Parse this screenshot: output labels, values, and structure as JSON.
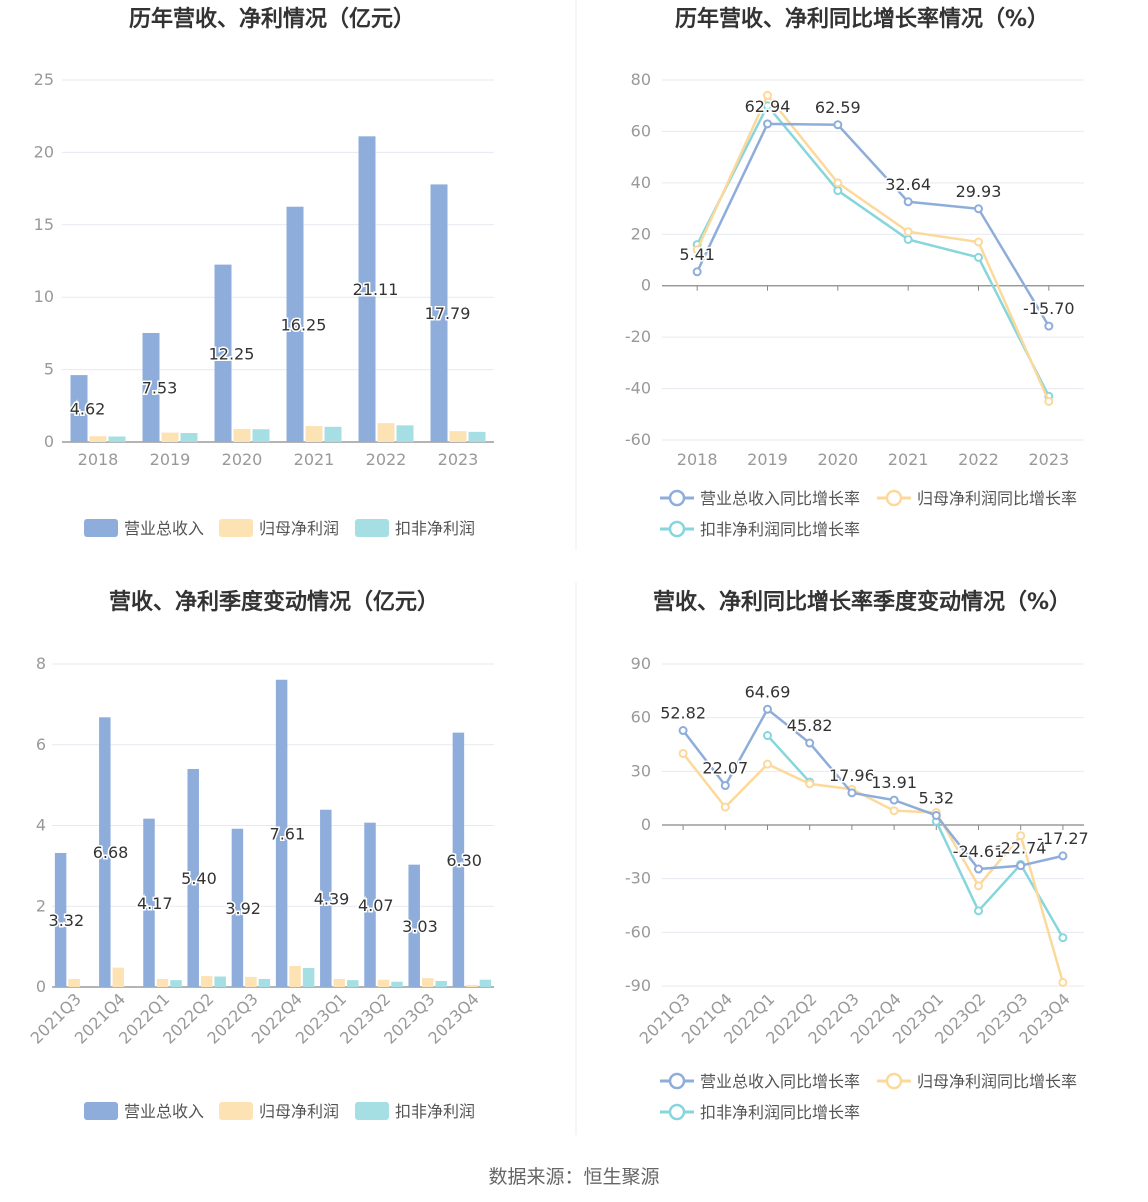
{
  "colors": {
    "revenue": "#8eaddb",
    "parent_profit": "#fde2b3",
    "deducted_profit": "#a5dfe3",
    "revenue_line": "#8eaddb",
    "parent_line": "#fcd99b",
    "deducted_line": "#86d6dc",
    "axis_text": "#999999",
    "title": "#333333",
    "grid": "#e6e9f0",
    "divider": "#eeeeee"
  },
  "source": "数据来源：恒生聚源",
  "chart_data": [
    {
      "id": "annual-amount",
      "type": "bar",
      "title": "历年营收、净利情况（亿元）",
      "categories": [
        "2018",
        "2019",
        "2020",
        "2021",
        "2022",
        "2023"
      ],
      "ylim": [
        0,
        25
      ],
      "yticks": [
        "0",
        "5",
        "10",
        "15",
        "20",
        "25"
      ],
      "grid": true,
      "legend_position": "bottom",
      "series": [
        {
          "name": "营业总收入",
          "values": [
            4.62,
            7.53,
            12.25,
            16.25,
            21.11,
            17.79
          ],
          "labels": [
            "4.62",
            "7.53",
            "12.25",
            "16.25",
            "21.11",
            "17.79"
          ]
        },
        {
          "name": "归母净利润",
          "values": [
            0.4,
            0.65,
            0.9,
            1.1,
            1.3,
            0.75
          ]
        },
        {
          "name": "扣非净利润",
          "values": [
            0.38,
            0.62,
            0.88,
            1.05,
            1.15,
            0.7
          ]
        }
      ]
    },
    {
      "id": "annual-growth",
      "type": "line",
      "title": "历年营收、净利同比增长率情况（%）",
      "categories": [
        "2018",
        "2019",
        "2020",
        "2021",
        "2022",
        "2023"
      ],
      "ylim": [
        -60,
        80
      ],
      "yticks": [
        "-60",
        "-40",
        "-20",
        "0",
        "20",
        "40",
        "60",
        "80"
      ],
      "grid": true,
      "legend_position": "bottom",
      "series": [
        {
          "name": "营业总收入同比增长率",
          "values": [
            5.41,
            62.94,
            62.59,
            32.64,
            29.93,
            -15.7
          ],
          "labels": [
            "5.41",
            "62.94",
            "62.59",
            "32.64",
            "29.93",
            "-15.70"
          ]
        },
        {
          "name": "归母净利润同比增长率",
          "values": [
            14,
            74,
            40,
            21,
            17,
            -45
          ]
        },
        {
          "name": "扣非净利润同比增长率",
          "values": [
            16,
            70,
            37,
            18,
            11,
            -43
          ]
        }
      ]
    },
    {
      "id": "quarterly-amount",
      "type": "bar",
      "title": "营收、净利季度变动情况（亿元）",
      "categories": [
        "2021Q3",
        "2021Q4",
        "2022Q1",
        "2022Q2",
        "2022Q3",
        "2022Q4",
        "2023Q1",
        "2023Q2",
        "2023Q3",
        "2023Q4"
      ],
      "ylim": [
        0,
        8
      ],
      "yticks": [
        "0",
        "2",
        "4",
        "6",
        "8"
      ],
      "grid": true,
      "legend_position": "bottom",
      "series": [
        {
          "name": "营业总收入",
          "values": [
            3.32,
            6.68,
            4.17,
            5.4,
            3.92,
            7.61,
            4.39,
            4.07,
            3.03,
            6.3
          ],
          "labels": [
            "3.32",
            "6.68",
            "4.17",
            "5.40",
            "3.92",
            "7.61",
            "4.39",
            "4.07",
            "3.03",
            "6.30"
          ]
        },
        {
          "name": "归母净利润",
          "values": [
            0.2,
            0.48,
            0.2,
            0.27,
            0.25,
            0.52,
            0.2,
            0.18,
            0.22,
            0.05
          ]
        },
        {
          "name": "扣非净利润",
          "values": [
            0.0,
            0.0,
            0.17,
            0.26,
            0.2,
            0.47,
            0.17,
            0.13,
            0.15,
            0.18
          ]
        }
      ]
    },
    {
      "id": "quarterly-growth",
      "type": "line",
      "title": "营收、净利同比增长率季度变动情况（%）",
      "categories": [
        "2021Q3",
        "2021Q4",
        "2022Q1",
        "2022Q2",
        "2022Q3",
        "2022Q4",
        "2023Q1",
        "2023Q2",
        "2023Q3",
        "2023Q4"
      ],
      "ylim": [
        -90,
        90
      ],
      "yticks": [
        "-90",
        "-60",
        "-30",
        "0",
        "30",
        "60",
        "90"
      ],
      "grid": true,
      "legend_position": "bottom",
      "series": [
        {
          "name": "营业总收入同比增长率",
          "values": [
            52.82,
            22.07,
            64.69,
            45.82,
            17.96,
            13.91,
            5.32,
            -24.61,
            -22.74,
            -17.27
          ],
          "labels": [
            "52.82",
            "22.07",
            "64.69",
            "45.82",
            "17.96",
            "13.91",
            "5.32",
            "-24.61",
            "-22.74",
            "-17.27"
          ]
        },
        {
          "name": "归母净利润同比增长率",
          "values": [
            40,
            10,
            34,
            23,
            20,
            8,
            7,
            -34,
            -6,
            -88
          ]
        },
        {
          "name": "扣非净利润同比增长率",
          "values": [
            null,
            null,
            50,
            24,
            null,
            null,
            2,
            -48,
            -22,
            -63
          ]
        }
      ]
    }
  ]
}
